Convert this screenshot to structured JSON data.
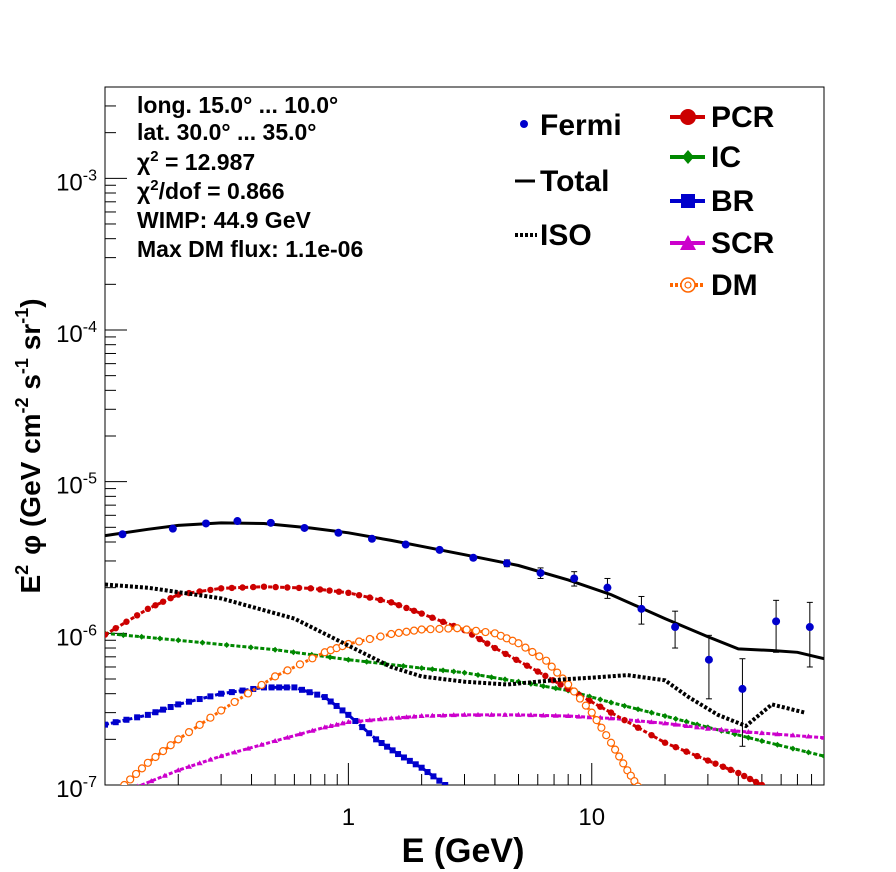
{
  "chart_data": {
    "type": "scatter",
    "xlabel": "E (GeV)",
    "ylabel_parts": {
      "e": "E",
      "e_sup": "2",
      "phi": "φ (GeV cm",
      "cm_sup": "-2",
      "s": " s",
      "s_sup": "-1",
      "sr": " sr",
      "sr_sup": "-1",
      "close": ")"
    },
    "x_scale": "log",
    "y_scale": "log",
    "xlim": [
      0.1,
      90
    ],
    "ylim": [
      1e-07,
      0.004
    ],
    "x_ticks": [
      {
        "value": 1,
        "label": "1"
      },
      {
        "value": 10,
        "label": "10"
      }
    ],
    "y_ticks": [
      {
        "value": 1e-07,
        "base": "10",
        "exp": "-7"
      },
      {
        "value": 1e-06,
        "base": "10",
        "exp": "-6"
      },
      {
        "value": 1e-05,
        "base": "10",
        "exp": "-5"
      },
      {
        "value": 0.0001,
        "base": "10",
        "exp": "-4"
      },
      {
        "value": 0.001,
        "base": "10",
        "exp": "-3"
      }
    ],
    "info": {
      "long": "long. 15.0° ... 10.0°",
      "lat": "lat. 30.0° ... 35.0°",
      "chi2_sym": "χ",
      "chi2_sup": "2",
      "chi2_rest": " = 12.987",
      "chi2dof_sym": "χ",
      "chi2dof_sup": "2",
      "chi2dof_rest": "/dof = 0.866",
      "wimp": "WIMP: 44.9 GeV",
      "dmflux": "Max DM flux: 1.1e-06"
    },
    "legend": [
      {
        "key": "fermi",
        "label": "Fermi"
      },
      {
        "key": "total",
        "label": "Total"
      },
      {
        "key": "iso",
        "label": "ISO"
      },
      {
        "key": "pcr",
        "label": "PCR"
      },
      {
        "key": "ic",
        "label": "IC"
      },
      {
        "key": "br",
        "label": "BR"
      },
      {
        "key": "scr",
        "label": "SCR"
      },
      {
        "key": "dm",
        "label": "DM"
      }
    ],
    "colors": {
      "fermi": "#0000cc",
      "total": "#000000",
      "iso": "#000000",
      "pcr": "#cc0000",
      "ic": "#008800",
      "br": "#0000cc",
      "scr": "#cc00cc",
      "dm": "#ff6600"
    },
    "fermi": [
      {
        "x": 0.118,
        "y": 4.5e-06,
        "err": 1e-07
      },
      {
        "x": 0.19,
        "y": 4.9e-06,
        "err": 1e-07
      },
      {
        "x": 0.26,
        "y": 5.3e-06,
        "err": 1e-07
      },
      {
        "x": 0.35,
        "y": 5.5e-06,
        "err": 1e-07
      },
      {
        "x": 0.48,
        "y": 5.35e-06,
        "err": 1e-07
      },
      {
        "x": 0.66,
        "y": 4.95e-06,
        "err": 1e-07
      },
      {
        "x": 0.91,
        "y": 4.6e-06,
        "err": 1e-07
      },
      {
        "x": 1.25,
        "y": 4.2e-06,
        "err": 1e-07
      },
      {
        "x": 1.72,
        "y": 3.85e-06,
        "err": 1e-07
      },
      {
        "x": 2.37,
        "y": 3.55e-06,
        "err": 1e-07
      },
      {
        "x": 3.26,
        "y": 3.15e-06,
        "err": 1e-07
      },
      {
        "x": 4.48,
        "y": 2.9e-06,
        "err": 1.5e-07
      },
      {
        "x": 6.16,
        "y": 2.5e-06,
        "err": 2e-07
      },
      {
        "x": 8.47,
        "y": 2.3e-06,
        "err": 2.5e-07
      },
      {
        "x": 11.6,
        "y": 2e-06,
        "err": 3e-07
      },
      {
        "x": 16.0,
        "y": 1.45e-06,
        "err": 3e-07
      },
      {
        "x": 22.0,
        "y": 1.1e-06,
        "err": 3e-07
      },
      {
        "x": 30.3,
        "y": 6.7e-07,
        "err": 3e-07
      },
      {
        "x": 41.6,
        "y": 4.3e-07,
        "err": 2.5e-07
      },
      {
        "x": 57.2,
        "y": 1.2e-06,
        "err": 4.5e-07
      },
      {
        "x": 78.7,
        "y": 1.1e-06,
        "err": 5e-07
      }
    ],
    "total": [
      [
        0.1,
        4.4e-06
      ],
      [
        0.15,
        4.85e-06
      ],
      [
        0.2,
        5.15e-06
      ],
      [
        0.3,
        5.35e-06
      ],
      [
        0.45,
        5.3e-06
      ],
      [
        0.7,
        4.95e-06
      ],
      [
        1.0,
        4.6e-06
      ],
      [
        1.5,
        4.1e-06
      ],
      [
        2.0,
        3.75e-06
      ],
      [
        3.0,
        3.3e-06
      ],
      [
        5.0,
        2.8e-06
      ],
      [
        8.0,
        2.25e-06
      ],
      [
        12.0,
        1.8e-06
      ],
      [
        20.0,
        1.25e-06
      ],
      [
        30.0,
        9.5e-07
      ],
      [
        40.0,
        7.9e-07
      ],
      [
        55.0,
        7.7e-07
      ],
      [
        70.0,
        7.5e-07
      ],
      [
        90.0,
        6.8e-07
      ]
    ],
    "iso": [
      [
        0.1,
        2.1e-06
      ],
      [
        0.15,
        2e-06
      ],
      [
        0.3,
        1.7e-06
      ],
      [
        0.6,
        1.25e-06
      ],
      [
        1.0,
        8.3e-07
      ],
      [
        1.5,
        6e-07
      ],
      [
        2.0,
        5.2e-07
      ],
      [
        3.0,
        4.8e-07
      ],
      [
        4.5,
        4.6e-07
      ],
      [
        6.0,
        4.8e-07
      ],
      [
        8.0,
        5e-07
      ],
      [
        10.0,
        5.1e-07
      ],
      [
        14.0,
        5.3e-07
      ],
      [
        20.0,
        4.9e-07
      ],
      [
        25.0,
        3.8e-07
      ],
      [
        33.0,
        2.9e-07
      ],
      [
        43.0,
        2.45e-07
      ],
      [
        55.0,
        3.4e-07
      ],
      [
        75.0,
        3e-07
      ]
    ],
    "pcr": [
      [
        0.1,
        9.8e-07
      ],
      [
        0.15,
        1.45e-06
      ],
      [
        0.2,
        1.8e-06
      ],
      [
        0.3,
        1.98e-06
      ],
      [
        0.45,
        2.03e-06
      ],
      [
        0.7,
        1.98e-06
      ],
      [
        1.0,
        1.85e-06
      ],
      [
        1.5,
        1.6e-06
      ],
      [
        2.0,
        1.35e-06
      ],
      [
        3.0,
        1.05e-06
      ],
      [
        4.0,
        8e-07
      ],
      [
        6.0,
        5.6e-07
      ],
      [
        8.0,
        4.3e-07
      ],
      [
        12.0,
        3e-07
      ],
      [
        20.0,
        1.9e-07
      ],
      [
        30.0,
        1.45e-07
      ],
      [
        40.0,
        1.2e-07
      ],
      [
        50.0,
        1e-07
      ]
    ],
    "ic": [
      [
        0.1,
        1e-06
      ],
      [
        0.2,
        9e-07
      ],
      [
        0.5,
        7.8e-07
      ],
      [
        1.0,
        6.7e-07
      ],
      [
        2.0,
        5.9e-07
      ],
      [
        3.0,
        5.5e-07
      ],
      [
        5.0,
        4.8e-07
      ],
      [
        8.0,
        4.2e-07
      ],
      [
        12.0,
        3.5e-07
      ],
      [
        20.0,
        2.85e-07
      ],
      [
        30.0,
        2.4e-07
      ],
      [
        50.0,
        1.95e-07
      ],
      [
        90.0,
        1.55e-07
      ]
    ],
    "br": [
      [
        0.1,
        2.5e-07
      ],
      [
        0.15,
        2.9e-07
      ],
      [
        0.2,
        3.4e-07
      ],
      [
        0.3,
        4e-07
      ],
      [
        0.45,
        4.4e-07
      ],
      [
        0.6,
        4.4e-07
      ],
      [
        0.8,
        3.8e-07
      ],
      [
        1.0,
        2.9e-07
      ],
      [
        1.3,
        2e-07
      ],
      [
        1.6,
        1.6e-07
      ],
      [
        2.0,
        1.3e-07
      ],
      [
        2.5,
        1e-07
      ]
    ],
    "scr": [
      [
        0.12,
        9e-08
      ],
      [
        0.2,
        1.25e-07
      ],
      [
        0.3,
        1.55e-07
      ],
      [
        0.5,
        1.95e-07
      ],
      [
        0.8,
        2.4e-07
      ],
      [
        1.0,
        2.6e-07
      ],
      [
        1.5,
        2.75e-07
      ],
      [
        2.0,
        2.85e-07
      ],
      [
        3.0,
        2.9e-07
      ],
      [
        5.0,
        2.9e-07
      ],
      [
        8.0,
        2.85e-07
      ],
      [
        12.0,
        2.75e-07
      ],
      [
        20.0,
        2.55e-07
      ],
      [
        30.0,
        2.35e-07
      ],
      [
        50.0,
        2.2e-07
      ],
      [
        90.0,
        2.05e-07
      ]
    ],
    "dm": [
      [
        0.12,
        1e-07
      ],
      [
        0.15,
        1.4e-07
      ],
      [
        0.2,
        2e-07
      ],
      [
        0.3,
        3.1e-07
      ],
      [
        0.5,
        5.2e-07
      ],
      [
        0.8,
        7.5e-07
      ],
      [
        1.0,
        8.5e-07
      ],
      [
        1.5,
        9.9e-07
      ],
      [
        2.0,
        1.06e-06
      ],
      [
        2.8,
        1.08e-06
      ],
      [
        4.0,
        1e-06
      ],
      [
        5.0,
        8.6e-07
      ],
      [
        6.5,
        6.6e-07
      ],
      [
        8.0,
        4.6e-07
      ],
      [
        10.0,
        3e-07
      ],
      [
        12.0,
        1.9e-07
      ],
      [
        14.0,
        1.25e-07
      ],
      [
        16.0,
        9e-08
      ]
    ]
  }
}
